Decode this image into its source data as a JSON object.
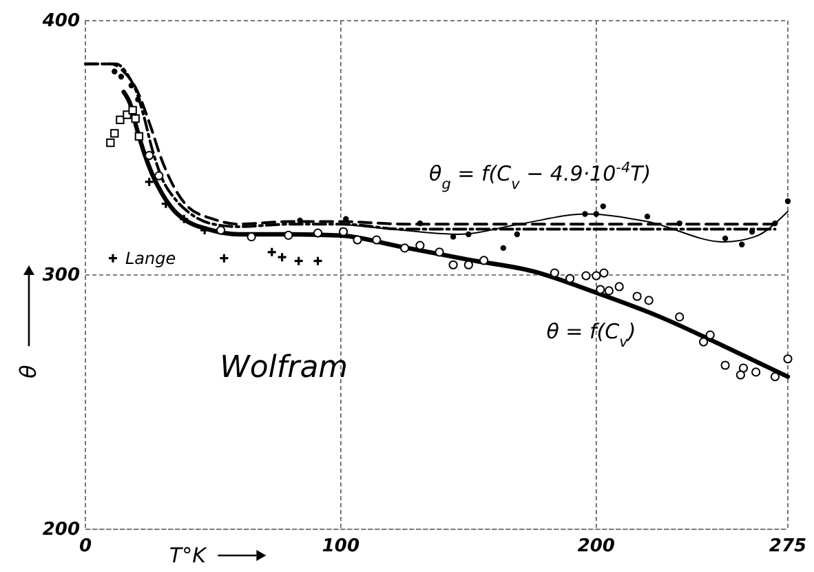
{
  "chart_data": {
    "type": "line",
    "title": "Wolfram",
    "xlabel": "T°K",
    "ylabel": "θ",
    "xlim": [
      0,
      275
    ],
    "ylim": [
      200,
      400
    ],
    "xticks": [
      0,
      100,
      200,
      275
    ],
    "yticks": [
      200,
      300,
      400
    ],
    "grid": true,
    "legend": "left",
    "annotations": [
      "θ$_{g}$ = f(C$_{v}$ − 4.9·10$^{-4}$T)",
      "θ = f(C$_{v}$)"
    ],
    "series": [
      {
        "line_style": "dashed",
        "color": "#000000",
        "x": [
          0,
          10,
          15,
          20,
          25,
          30,
          35,
          40,
          50,
          60,
          80,
          100,
          125,
          150,
          175,
          200,
          225,
          250,
          270
        ],
        "values": [
          383,
          383,
          380,
          373,
          360,
          345,
          334,
          327,
          322,
          320,
          321,
          321,
          320,
          320,
          320,
          320,
          320,
          320,
          320
        ]
      },
      {
        "line_style": "dashdot",
        "color": "#000000",
        "x": [
          0,
          12,
          17,
          20,
          23,
          26,
          30,
          35,
          40,
          50,
          60,
          80,
          100,
          125,
          150,
          175,
          200,
          225,
          250,
          270
        ],
        "values": [
          383,
          383,
          378,
          372,
          362,
          350,
          338,
          330,
          325,
          320,
          319,
          320,
          320,
          318,
          318,
          318,
          318,
          318,
          318,
          318
        ]
      },
      {
        "line_style": "solid",
        "color": "#000000",
        "x": [
          15,
          18,
          20,
          23,
          26,
          30,
          35,
          40,
          48,
          60,
          80,
          100,
          124,
          150,
          175,
          200,
          225,
          250,
          275
        ],
        "values": [
          372,
          366,
          358,
          348,
          340,
          332,
          325,
          321,
          318,
          316,
          316,
          315.5,
          311,
          306,
          301.5,
          293,
          283.5,
          272,
          260
        ]
      },
      {
        "line_style": "solid",
        "color": "#000000",
        "x": [
          100,
          124,
          146,
          170,
          196,
          220,
          250,
          262,
          275
        ],
        "values": [
          320,
          317.6,
          316,
          320,
          324,
          321,
          313,
          315,
          325
        ]
      },
      {
        "type": "scatter",
        "name": "Lange",
        "marker": "cross",
        "color": "#000000",
        "x": [
          25,
          31.5,
          38.6,
          46.7,
          54.3,
          73,
          77,
          83.5,
          91
        ],
        "values": [
          336.6,
          328,
          322,
          317.6,
          306.6,
          309,
          307,
          305.5,
          305.5
        ]
      },
      {
        "type": "scatter",
        "marker": "square",
        "color": "#000000",
        "x": [
          9.8,
          11.4,
          13.6,
          16.3,
          18.5,
          19.6,
          21
        ],
        "values": [
          352,
          355.7,
          361,
          363,
          364.8,
          361.5,
          354.5
        ]
      },
      {
        "type": "scatter",
        "marker": "circle",
        "color": "#000000",
        "x": [
          25,
          28.8,
          53,
          65,
          79.5,
          91,
          101,
          106.5,
          114,
          125,
          131,
          138.6,
          144,
          150,
          156,
          183.7,
          189.7,
          196,
          200,
          203,
          201.6,
          205,
          209,
          216,
          220.6,
          232.6,
          244.6,
          242,
          250.5,
          257.6,
          256.5,
          262.5,
          270,
          275
        ],
        "values": [
          347,
          339,
          317.6,
          315,
          315.6,
          316.5,
          317,
          313.8,
          313.8,
          310.6,
          311.6,
          309,
          304,
          304,
          305.7,
          300.8,
          298.6,
          299.7,
          299.7,
          300.8,
          294.3,
          293.8,
          295.4,
          291.6,
          290,
          283.5,
          276.4,
          273.7,
          264.5,
          263.4,
          260.7,
          261.8,
          260,
          267
        ]
      },
      {
        "type": "scatter",
        "marker": "circle",
        "color": "#000000",
        "x": [
          11.4,
          14,
          18,
          20.6,
          84,
          102,
          131,
          144,
          150,
          163.6,
          169,
          195.6,
          200,
          202.7,
          220,
          232.6,
          250.5,
          257,
          261,
          270,
          275
        ],
        "values": [
          380,
          378,
          374.5,
          369,
          321.4,
          322,
          320.3,
          315,
          316,
          310.6,
          316,
          324,
          324,
          327,
          323,
          320.3,
          314.4,
          312,
          317,
          320.3,
          329
        ]
      }
    ]
  }
}
